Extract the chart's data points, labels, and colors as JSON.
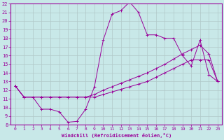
{
  "xlabel": "Windchill (Refroidissement éolien,°C)",
  "background_color": "#c8e8e8",
  "line_color": "#990099",
  "grid_color": "#b0c8c8",
  "xlim": [
    -0.5,
    23.5
  ],
  "ylim": [
    8,
    22
  ],
  "xticks": [
    0,
    1,
    2,
    3,
    4,
    5,
    6,
    7,
    8,
    9,
    10,
    11,
    12,
    13,
    14,
    15,
    16,
    17,
    18,
    19,
    20,
    21,
    22,
    23
  ],
  "yticks": [
    8,
    9,
    10,
    11,
    12,
    13,
    14,
    15,
    16,
    17,
    18,
    19,
    20,
    21,
    22
  ],
  "line1_x": [
    0,
    1,
    2,
    3,
    4,
    5,
    6,
    7,
    8,
    9,
    10,
    11,
    12,
    13,
    14,
    15,
    16,
    17,
    18,
    19,
    20,
    21,
    22,
    23
  ],
  "line1_y": [
    12.5,
    11.2,
    11.2,
    9.8,
    9.8,
    9.5,
    8.3,
    8.4,
    9.8,
    12.4,
    17.8,
    20.8,
    21.2,
    22.2,
    21.0,
    18.4,
    18.4,
    18.0,
    18.0,
    16.0,
    14.8,
    17.8,
    13.8,
    13.0
  ],
  "line2_x": [
    0,
    1,
    3,
    4,
    5,
    6,
    7,
    8,
    9,
    10,
    11,
    12,
    13,
    14,
    15,
    16,
    17,
    18,
    19,
    20,
    21,
    22,
    23
  ],
  "line2_y": [
    12.5,
    11.2,
    11.2,
    11.2,
    11.2,
    11.2,
    11.2,
    11.2,
    11.5,
    12.0,
    12.4,
    12.8,
    13.2,
    13.6,
    14.0,
    14.5,
    15.0,
    15.6,
    16.2,
    16.7,
    17.2,
    16.2,
    13.0
  ],
  "line3_x": [
    0,
    1,
    3,
    4,
    5,
    6,
    7,
    8,
    9,
    10,
    11,
    12,
    13,
    14,
    15,
    16,
    17,
    18,
    19,
    20,
    21,
    22,
    23
  ],
  "line3_y": [
    12.5,
    11.2,
    11.2,
    11.2,
    11.2,
    11.2,
    11.2,
    11.2,
    11.2,
    11.5,
    11.8,
    12.1,
    12.4,
    12.7,
    13.0,
    13.5,
    14.0,
    14.5,
    15.0,
    15.5,
    15.5,
    15.5,
    13.0
  ]
}
